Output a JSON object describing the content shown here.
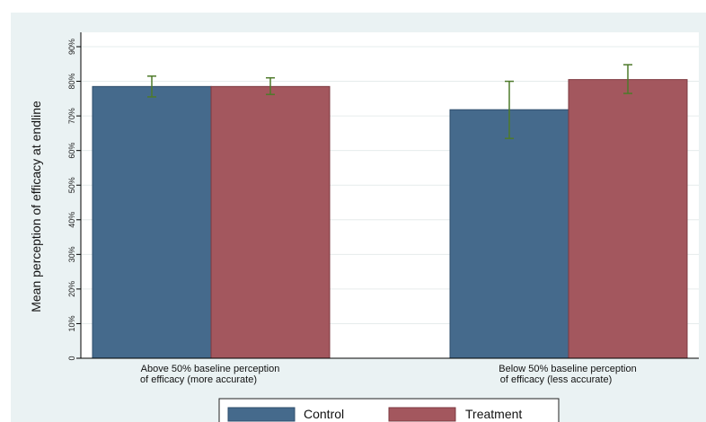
{
  "chart_data": {
    "type": "bar",
    "ylabel": "Mean perception of efficacy at endline",
    "xlabel": "",
    "ylim": [
      0,
      0.9
    ],
    "yticks": [
      0,
      0.1,
      0.2,
      0.3,
      0.4,
      0.5,
      0.6,
      0.7,
      0.8,
      0.9
    ],
    "ytick_labels": [
      "0",
      "10%",
      "20%",
      "30%",
      "40%",
      "50%",
      "60%",
      "70%",
      "80%",
      "90%"
    ],
    "categories": [
      [
        "Above 50% baseline perception",
        "of efficacy (more accurate)"
      ],
      [
        "Below 50% baseline perception",
        "of efficacy (less accurate)"
      ]
    ],
    "series": [
      {
        "name": "Control",
        "color": "#456a8c",
        "values": [
          0.785,
          0.718
        ],
        "ci_low": [
          0.755,
          0.635
        ],
        "ci_high": [
          0.815,
          0.8
        ]
      },
      {
        "name": "Treatment",
        "color": "#a3575e",
        "values": [
          0.785,
          0.805
        ],
        "ci_low": [
          0.762,
          0.765
        ],
        "ci_high": [
          0.81,
          0.848
        ]
      }
    ],
    "error_bar_color": "#4e7a2a",
    "grid": true,
    "legend_position": "bottom"
  }
}
